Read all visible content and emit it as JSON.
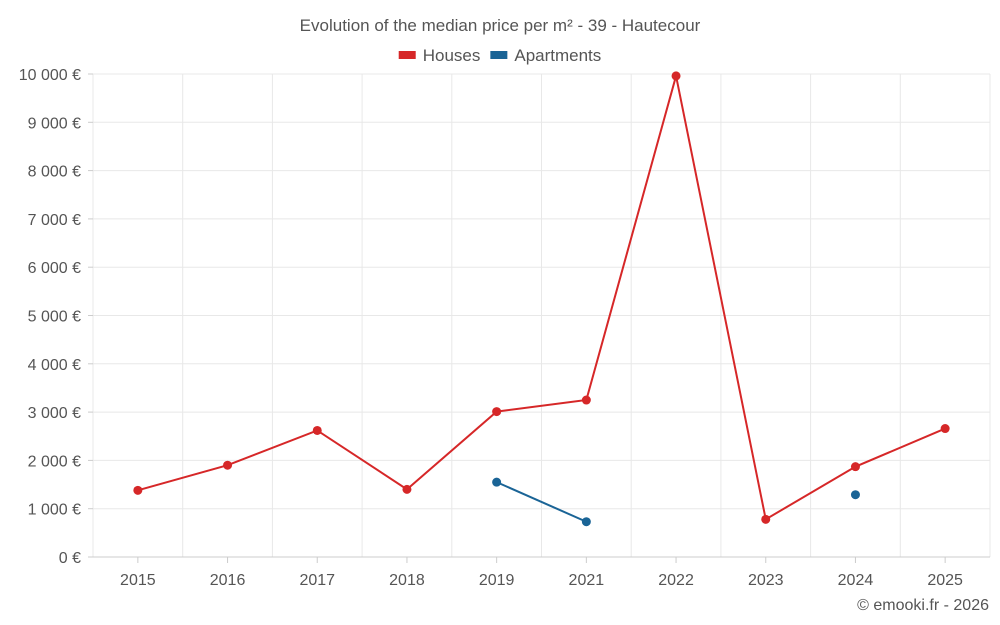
{
  "chart_data": {
    "type": "line",
    "title": "Evolution of the median price per m² - 39 - Hautecour",
    "categories": [
      "2015",
      "2016",
      "2017",
      "2018",
      "2019",
      "2021",
      "2022",
      "2023",
      "2024",
      "2025"
    ],
    "ylim": [
      0,
      10000
    ],
    "yticks": [
      0,
      1000,
      2000,
      3000,
      4000,
      5000,
      6000,
      7000,
      8000,
      9000,
      10000
    ],
    "ytick_labels": [
      "0 €",
      "1 000 €",
      "2 000 €",
      "3 000 €",
      "4 000 €",
      "5 000 €",
      "6 000 €",
      "7 000 €",
      "8 000 €",
      "9 000 €",
      "10 000 €"
    ],
    "grid": true,
    "legend_position": "top-center",
    "series": [
      {
        "name": "Houses",
        "color": "#d62728",
        "values": [
          1380,
          1900,
          2620,
          1400,
          3010,
          3250,
          9960,
          780,
          1870,
          2660
        ]
      },
      {
        "name": "Apartments",
        "color": "#1a6496",
        "values": [
          null,
          null,
          null,
          null,
          1550,
          730,
          null,
          null,
          1290,
          null
        ]
      }
    ]
  },
  "credit": "© emooki.fr - 2026"
}
